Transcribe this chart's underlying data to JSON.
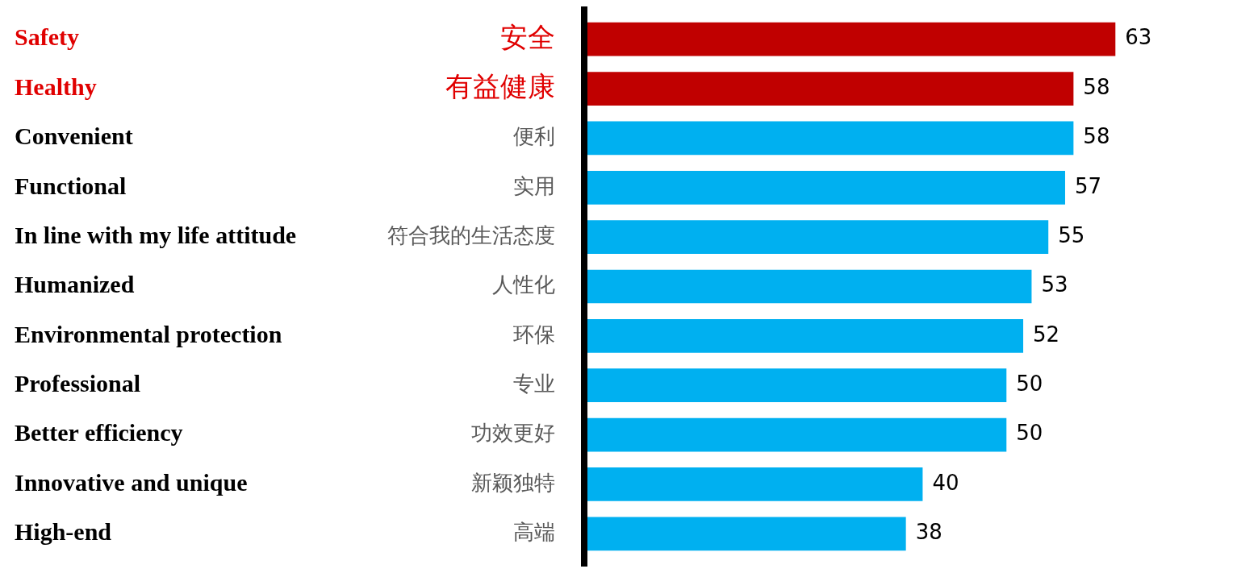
{
  "chart_data": {
    "type": "bar",
    "orientation": "horizontal",
    "categories": [
      "Safety",
      "Healthy",
      "Convenient",
      "Functional",
      "In line with my life attitude",
      "Humanized",
      "Environmental protection",
      "Professional",
      "Better efficiency",
      "Innovative and unique",
      "High-end"
    ],
    "y2_categories": [
      "安全",
      "有益健康",
      "便利",
      "实用",
      "符合我的生活态度",
      "人性化",
      "环保",
      "专业",
      "功效更好",
      "新颖独特",
      "高端"
    ],
    "values": [
      63,
      58,
      58,
      57,
      55,
      53,
      52,
      50,
      50,
      40,
      38
    ],
    "colors": [
      "#c00000",
      "#c00000",
      "#00b0f0",
      "#00b0f0",
      "#00b0f0",
      "#00b0f0",
      "#00b0f0",
      "#00b0f0",
      "#00b0f0",
      "#00b0f0",
      "#00b0f0"
    ],
    "tick_labels": "y",
    "data_labels": true,
    "legend": false
  }
}
